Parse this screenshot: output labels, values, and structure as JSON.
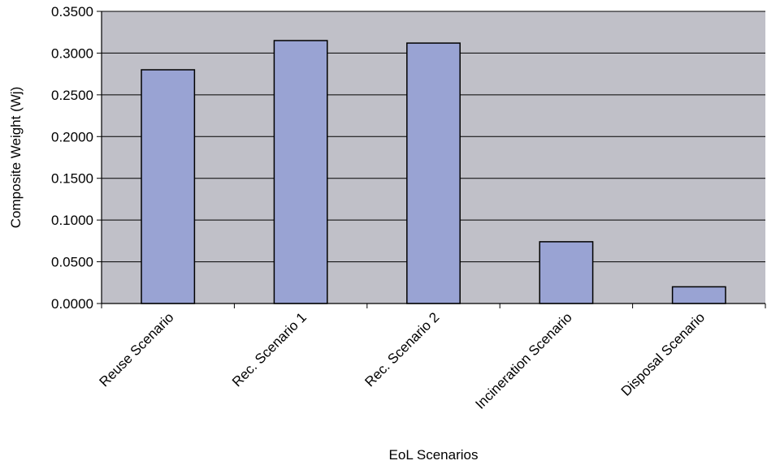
{
  "chart_data": {
    "type": "bar",
    "categories": [
      "Reuse Scenario",
      "Rec. Scenario 1",
      "Rec. Scenario 2",
      "Incineration Scenario",
      "Disposal Scenario"
    ],
    "values": [
      0.28,
      0.315,
      0.312,
      0.074,
      0.02
    ],
    "xlabel": "EoL Scenarios",
    "ylabel": "Composite Weight (Wj)",
    "ylim": [
      0,
      0.35
    ],
    "yticks": [
      0.0,
      0.05,
      0.1,
      0.15,
      0.2,
      0.25,
      0.3,
      0.35
    ],
    "ytick_labels": [
      "0.0000",
      "0.0500",
      "0.1000",
      "0.1500",
      "0.2000",
      "0.2500",
      "0.3000",
      "0.3500"
    ],
    "grid": true,
    "legend": "none",
    "colors": {
      "bar_fill": "#99a3d3",
      "bar_stroke": "#000000",
      "plot_background": "#c0c0c8",
      "gridline": "#000000"
    }
  }
}
